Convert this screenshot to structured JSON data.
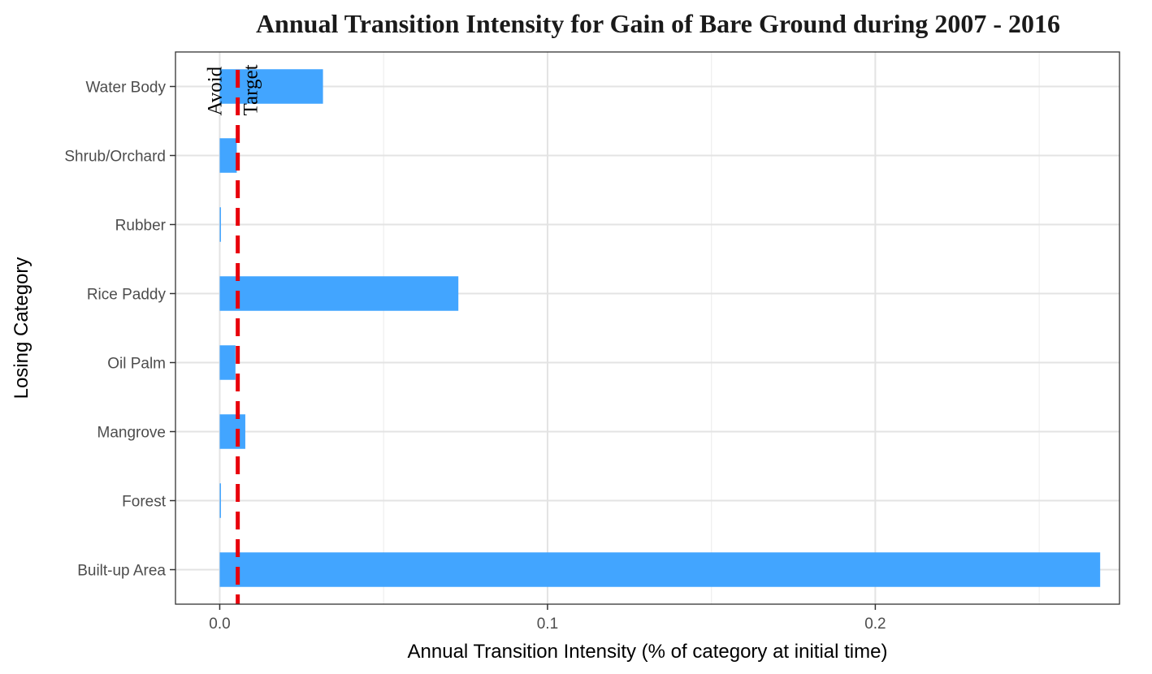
{
  "chart_data": {
    "type": "bar",
    "orientation": "horizontal",
    "title": "Annual Transition Intensity for Gain of  Bare Ground during 2007 - 2016",
    "xlabel": "Annual Transition Intensity (% of category at initial time)",
    "ylabel": "Losing Category",
    "categories": [
      "Water Body",
      "Shrub/Orchard",
      "Rubber",
      "Rice Paddy",
      "Oil Palm",
      "Mangrove",
      "Forest",
      "Built-up Area"
    ],
    "values": [
      0.0315,
      0.0052,
      0.0003,
      0.0728,
      0.0048,
      0.0078,
      0.0003,
      0.2686
    ],
    "xlim": [
      -0.0135,
      0.2745
    ],
    "xticks": [
      0.0,
      0.1,
      0.2
    ],
    "xtick_labels": [
      "0.0",
      "0.1",
      "0.2"
    ],
    "grid": true,
    "bar_color": "#42a5ff",
    "reference_line": {
      "value": 0.0055,
      "color": "#e8000b",
      "style": "dashed",
      "labels": [
        "Avoid",
        "Target"
      ]
    }
  }
}
